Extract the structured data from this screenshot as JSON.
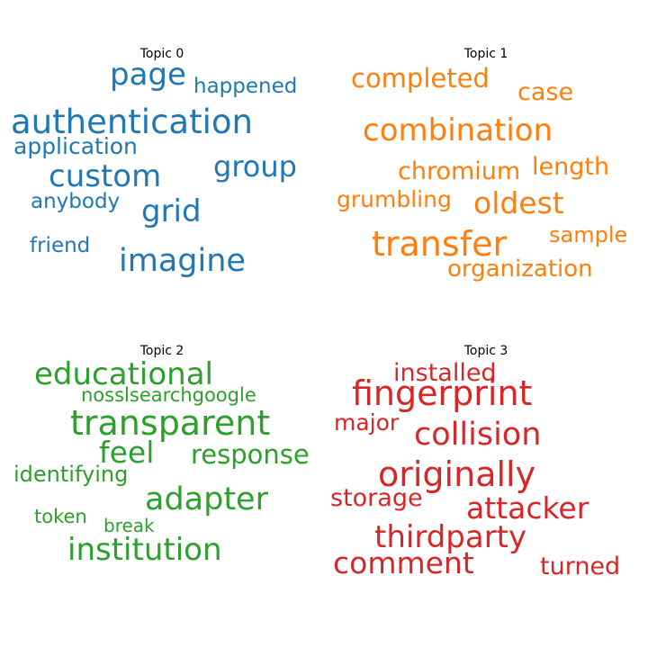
{
  "topics": [
    {
      "title": "Topic 0",
      "color": "#1f77b4",
      "words": [
        {
          "text": "page",
          "weight": 0.74
        },
        {
          "text": "happened",
          "weight": 0.53
        },
        {
          "text": "authentication",
          "weight": 1.0
        },
        {
          "text": "application",
          "weight": 0.58
        },
        {
          "text": "custom",
          "weight": 0.79
        },
        {
          "text": "group",
          "weight": 0.74
        },
        {
          "text": "anybody",
          "weight": 0.53
        },
        {
          "text": "grid",
          "weight": 0.79
        },
        {
          "text": "friend",
          "weight": 0.53
        },
        {
          "text": "imagine",
          "weight": 0.82
        }
      ]
    },
    {
      "title": "Topic 1",
      "color": "#ff7f0e",
      "words": [
        {
          "text": "completed",
          "weight": 0.74
        },
        {
          "text": "case",
          "weight": 0.69
        },
        {
          "text": "combination",
          "weight": 0.86
        },
        {
          "text": "chromium",
          "weight": 0.69
        },
        {
          "text": "length",
          "weight": 0.69
        },
        {
          "text": "grumbling",
          "weight": 0.62
        },
        {
          "text": "oldest",
          "weight": 0.82
        },
        {
          "text": "transfer",
          "weight": 1.0
        },
        {
          "text": "sample",
          "weight": 0.62
        },
        {
          "text": "organization",
          "weight": 0.66
        }
      ]
    },
    {
      "title": "Topic 2",
      "color": "#2ca02c",
      "words": [
        {
          "text": "educational",
          "weight": 0.86
        },
        {
          "text": "nosslsearchgoogle",
          "weight": 0.55
        },
        {
          "text": "transparent",
          "weight": 1.0
        },
        {
          "text": "feel",
          "weight": 0.82
        },
        {
          "text": "response",
          "weight": 0.74
        },
        {
          "text": "identifying",
          "weight": 0.6
        },
        {
          "text": "adapter",
          "weight": 0.9
        },
        {
          "text": "token",
          "weight": 0.5
        },
        {
          "text": "break",
          "weight": 0.48
        },
        {
          "text": "institution",
          "weight": 0.86
        }
      ]
    },
    {
      "title": "Topic 3",
      "color": "#d62728",
      "words": [
        {
          "text": "installed",
          "weight": 0.66
        },
        {
          "text": "fingerprint",
          "weight": 1.0
        },
        {
          "text": "major",
          "weight": 0.62
        },
        {
          "text": "collision",
          "weight": 0.9
        },
        {
          "text": "originally",
          "weight": 1.0
        },
        {
          "text": "storage",
          "weight": 0.66
        },
        {
          "text": "attacker",
          "weight": 0.86
        },
        {
          "text": "thirdparty",
          "weight": 0.86
        },
        {
          "text": "comment",
          "weight": 0.82
        },
        {
          "text": "turned",
          "weight": 0.69
        }
      ]
    }
  ]
}
